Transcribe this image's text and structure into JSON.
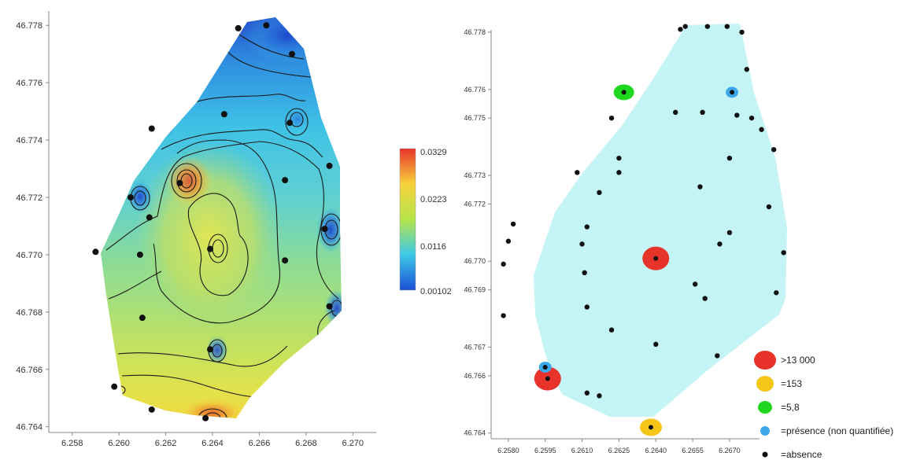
{
  "chart_data": [
    {
      "type": "heatmap",
      "xlim": [
        6.257,
        6.271
      ],
      "ylim": [
        46.7638,
        46.7785
      ],
      "x_ticks": [
        "6.258",
        "6.260",
        "6.262",
        "6.264",
        "6.266",
        "6.268",
        "6.270"
      ],
      "y_ticks": [
        "46.764",
        "46.766",
        "46.768",
        "46.770",
        "46.772",
        "46.774",
        "46.776",
        "46.778"
      ],
      "colorbar": {
        "ticks": [
          "0.0329",
          "0.0223",
          "0.0116",
          "0.00102"
        ],
        "colors": [
          "#e8332a",
          "#f7d23c",
          "#b5e44a",
          "#3ec9e8",
          "#1a4fd6"
        ]
      },
      "points": [
        {
          "x": 6.2651,
          "y": 46.7779
        },
        {
          "x": 6.2663,
          "y": 46.778
        },
        {
          "x": 6.2674,
          "y": 46.777
        },
        {
          "x": 6.2645,
          "y": 46.7749
        },
        {
          "x": 6.2673,
          "y": 46.7746
        },
        {
          "x": 6.2614,
          "y": 46.7744
        },
        {
          "x": 6.2626,
          "y": 46.7725
        },
        {
          "x": 6.269,
          "y": 46.7731
        },
        {
          "x": 6.2671,
          "y": 46.7726
        },
        {
          "x": 6.2605,
          "y": 46.772
        },
        {
          "x": 6.2613,
          "y": 46.7713
        },
        {
          "x": 6.2688,
          "y": 46.7709
        },
        {
          "x": 6.2639,
          "y": 46.7702
        },
        {
          "x": 6.259,
          "y": 46.7701
        },
        {
          "x": 6.2609,
          "y": 46.77
        },
        {
          "x": 6.2671,
          "y": 46.7698
        },
        {
          "x": 6.269,
          "y": 46.7682
        },
        {
          "x": 6.261,
          "y": 46.7678
        },
        {
          "x": 6.2639,
          "y": 46.7667
        },
        {
          "x": 6.2598,
          "y": 46.7654
        },
        {
          "x": 6.2614,
          "y": 46.7646
        },
        {
          "x": 6.2637,
          "y": 46.7643
        }
      ]
    },
    {
      "type": "scatter",
      "xlim": [
        6.2573,
        6.2695
      ],
      "ylim": [
        46.7638,
        46.7783
      ],
      "x_ticks": [
        "6.2580",
        "6.2595",
        "6.2610",
        "6.2625",
        "6.2640",
        "6.2655",
        "6.2670"
      ],
      "y_ticks": [
        "46.764",
        "46.766",
        "46.767",
        "46.769",
        "46.770",
        "46.772",
        "46.773",
        "46.775",
        "46.776",
        "46.778"
      ],
      "legend": {
        "placement": "bottom-right",
        "entries": [
          {
            "label": ">13 000",
            "color": "#e8332a"
          },
          {
            "label": "=153",
            "color": "#f5c518"
          },
          {
            "label": "=5,8",
            "color": "#1ed71e"
          },
          {
            "label": "=présence (non quantifiée)",
            "color": "#3ea8e8"
          },
          {
            "label": "=absence",
            "color": "#111111"
          }
        ]
      },
      "series": [
        {
          "category": ">13 000",
          "points": [
            {
              "x": 6.264,
              "y": 46.7701
            },
            {
              "x": 6.2596,
              "y": 46.7659
            }
          ]
        },
        {
          "category": "=153",
          "points": [
            {
              "x": 6.2638,
              "y": 46.7642
            }
          ]
        },
        {
          "category": "=5,8",
          "points": [
            {
              "x": 6.2627,
              "y": 46.7759
            }
          ]
        },
        {
          "category": "=présence (non quantifiée)",
          "points": [
            {
              "x": 6.2671,
              "y": 46.7759
            },
            {
              "x": 6.2595,
              "y": 46.7663
            }
          ]
        },
        {
          "category": "=absence",
          "points": [
            {
              "x": 6.2652,
              "y": 46.7782
            },
            {
              "x": 6.2661,
              "y": 46.7782
            },
            {
              "x": 6.2669,
              "y": 46.7782
            },
            {
              "x": 6.265,
              "y": 46.7781
            },
            {
              "x": 6.2675,
              "y": 46.778
            },
            {
              "x": 6.2677,
              "y": 46.7767
            },
            {
              "x": 6.2648,
              "y": 46.7752
            },
            {
              "x": 6.2659,
              "y": 46.7752
            },
            {
              "x": 6.2673,
              "y": 46.7751
            },
            {
              "x": 6.2679,
              "y": 46.775
            },
            {
              "x": 6.2622,
              "y": 46.775
            },
            {
              "x": 6.2683,
              "y": 46.7746
            },
            {
              "x": 6.2688,
              "y": 46.7739
            },
            {
              "x": 6.2625,
              "y": 46.7736
            },
            {
              "x": 6.267,
              "y": 46.7736
            },
            {
              "x": 6.2608,
              "y": 46.7731
            },
            {
              "x": 6.2625,
              "y": 46.7731
            },
            {
              "x": 6.2658,
              "y": 46.7726
            },
            {
              "x": 6.2617,
              "y": 46.7724
            },
            {
              "x": 6.2686,
              "y": 46.7719
            },
            {
              "x": 6.2582,
              "y": 46.7713
            },
            {
              "x": 6.2612,
              "y": 46.7712
            },
            {
              "x": 6.267,
              "y": 46.771
            },
            {
              "x": 6.258,
              "y": 46.7707
            },
            {
              "x": 6.261,
              "y": 46.7706
            },
            {
              "x": 6.2666,
              "y": 46.7706
            },
            {
              "x": 6.2692,
              "y": 46.7703
            },
            {
              "x": 6.2578,
              "y": 46.7699
            },
            {
              "x": 6.2611,
              "y": 46.7696
            },
            {
              "x": 6.2656,
              "y": 46.7692
            },
            {
              "x": 6.2689,
              "y": 46.7689
            },
            {
              "x": 6.266,
              "y": 46.7687
            },
            {
              "x": 6.2612,
              "y": 46.7684
            },
            {
              "x": 6.2578,
              "y": 46.7681
            },
            {
              "x": 6.264,
              "y": 46.7671
            },
            {
              "x": 6.2622,
              "y": 46.7676
            },
            {
              "x": 6.2665,
              "y": 46.7667
            },
            {
              "x": 6.2612,
              "y": 46.7654
            },
            {
              "x": 6.2617,
              "y": 46.7653
            }
          ]
        }
      ]
    }
  ]
}
